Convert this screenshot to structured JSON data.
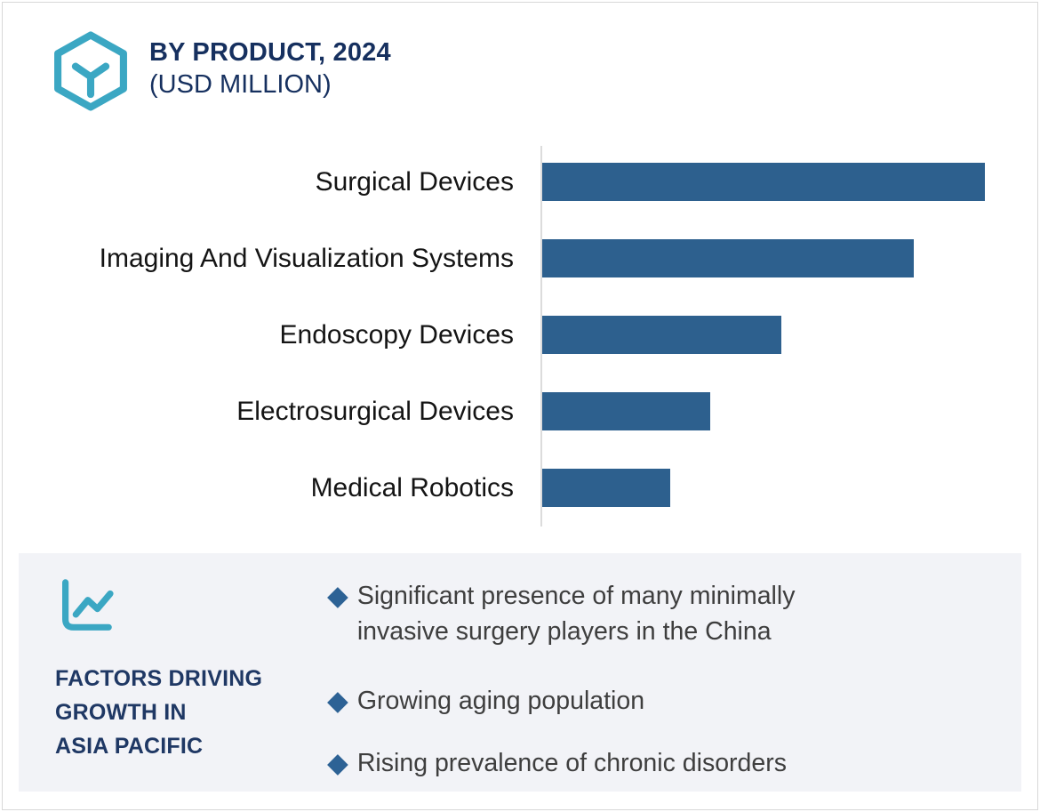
{
  "header": {
    "title_line1": "BY PRODUCT, 2024",
    "title_line2": "(USD MILLION)",
    "logo_icon": "hexagon-y-logo-icon"
  },
  "chart_data": {
    "type": "bar",
    "orientation": "horizontal",
    "title": "BY PRODUCT, 2024 (USD MILLION)",
    "categories": [
      "Surgical Devices",
      "Imaging And Visualization Systems",
      "Endoscopy Devices",
      "Electrosurgical Devices",
      "Medical Robotics"
    ],
    "values": [
      100,
      84,
      54,
      38,
      29
    ],
    "value_note": "relative bar lengths (max bar = 100); no numeric axis ticks or data labels are shown in the figure",
    "xlabel": "",
    "ylabel": "",
    "grid": false,
    "legend": false,
    "bar_color": "#2d608e"
  },
  "factors": {
    "icon": "line-chart-icon",
    "heading": "FACTORS DRIVING\nGROWTH IN\nASIA PACIFIC",
    "bullets": [
      "Significant presence of many minimally\ninvasive surgery players in the China",
      "Growing aging population",
      "Rising prevalence of chronic disorders"
    ]
  },
  "colors": {
    "teal_accent": "#3ba7c3",
    "navy_title": "#16305f",
    "navy_heading": "#1f3864",
    "bar_blue": "#2d608e",
    "diamond_blue": "#2d6295",
    "panel_bg": "#f2f3f7",
    "axis_gray": "#dcdcdc"
  }
}
